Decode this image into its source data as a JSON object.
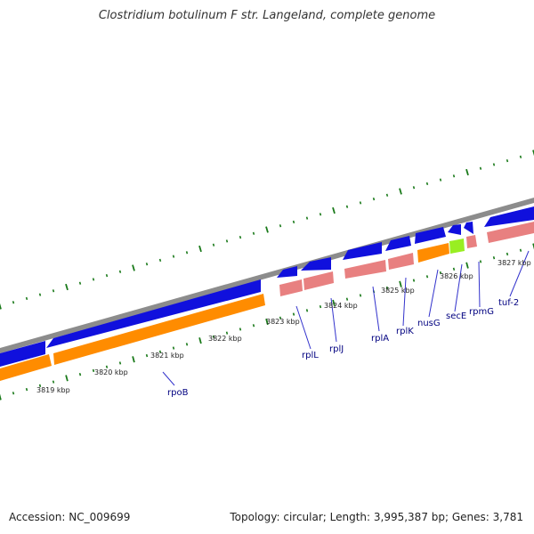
{
  "title": "Clostridium botulinum F str. Langeland, complete genome",
  "accession_text": "Accession: NC_009699",
  "summary_text": "Topology: circular; Length: 3,995,387 bp; Genes: 3,781",
  "colors": {
    "backbone": "#8c8c8c",
    "tick": "#1a7a1a",
    "leader_line": "#3333cc",
    "cds_forward": "#1010dd",
    "cds_reverse": "#ff8c00",
    "rrna_trna": "#e88080",
    "other_feature": "#99ee22"
  },
  "kbp_labels": [
    "3819 kbp",
    "3820 kbp",
    "3821 kbp",
    "3822 kbp",
    "3823 kbp",
    "3824 kbp",
    "3825 kbp",
    "3826 kbp",
    "3827 kbp"
  ],
  "genes": [
    "rpoB",
    "rplL",
    "rplJ",
    "rplA",
    "rplK",
    "nusG",
    "secE",
    "rpmG",
    "tuf-2"
  ]
}
